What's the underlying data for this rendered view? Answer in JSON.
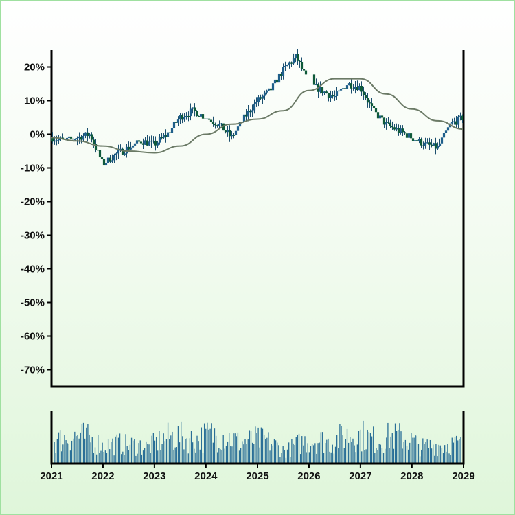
{
  "chart_data": {
    "type": "line",
    "subtype": "candlestick-ohlc-with-moving-average-and-volume",
    "x_axis": {
      "type": "date",
      "range": [
        "2021-01-01",
        "2029-01-01"
      ],
      "tick_labels": [
        "2021",
        "2022",
        "2023",
        "2024",
        "2025",
        "2026",
        "2027",
        "2028",
        "2029"
      ]
    },
    "y_axis": {
      "unit": "%",
      "range": [
        -75,
        25
      ],
      "tick_values": [
        20,
        10,
        0,
        -10,
        -20,
        -30,
        -40,
        -50,
        -60,
        -70
      ],
      "tick_labels": [
        "20%",
        "10%",
        "0%",
        "-10%",
        "-20%",
        "-30%",
        "-40%",
        "-50%",
        "-60%",
        "-70%"
      ]
    },
    "grid": false,
    "legend": "none",
    "colors": {
      "candle_up": "#1f5f8b",
      "candle_down": "#0f5a3a",
      "wick": "#1c4f6e",
      "moving_average": "#6b7a66",
      "volume": "#2a6f97",
      "axis": "#000000"
    },
    "price_series": {
      "dates": [
        "2021-01",
        "2021-04",
        "2021-07",
        "2021-10",
        "2022-01",
        "2022-04",
        "2022-07",
        "2022-10",
        "2023-01",
        "2023-04",
        "2023-07",
        "2023-10",
        "2024-01",
        "2024-04",
        "2024-07",
        "2024-10",
        "2025-01",
        "2025-04",
        "2025-07",
        "2025-10",
        "2026-01",
        "2026-04",
        "2026-07",
        "2026-10",
        "2027-01",
        "2027-04",
        "2027-07",
        "2027-10",
        "2028-01",
        "2028-04",
        "2028-07",
        "2028-10",
        "2029-01"
      ],
      "values": [
        -1,
        -2,
        -1,
        0,
        -9,
        -6,
        -4,
        -2,
        -3,
        0,
        5,
        7,
        5,
        3,
        -1,
        5,
        10,
        13,
        19,
        23,
        15,
        13,
        11,
        15,
        14,
        7,
        3,
        1,
        -1,
        -3,
        -4,
        3,
        5
      ]
    },
    "moving_average": {
      "dates": [
        "2021-01",
        "2021-07",
        "2022-01",
        "2022-07",
        "2023-01",
        "2023-07",
        "2024-01",
        "2024-07",
        "2025-01",
        "2025-07",
        "2026-01",
        "2026-07",
        "2027-01",
        "2027-07",
        "2028-01",
        "2028-07",
        "2029-01"
      ],
      "values": [
        -1,
        -2,
        -3.5,
        -5,
        -5.5,
        -3.5,
        0,
        3,
        4.5,
        7,
        13,
        16.5,
        16.5,
        12,
        7.5,
        4,
        1.5
      ]
    },
    "volume": {
      "count": 280,
      "max_relative": 1.0
    }
  }
}
